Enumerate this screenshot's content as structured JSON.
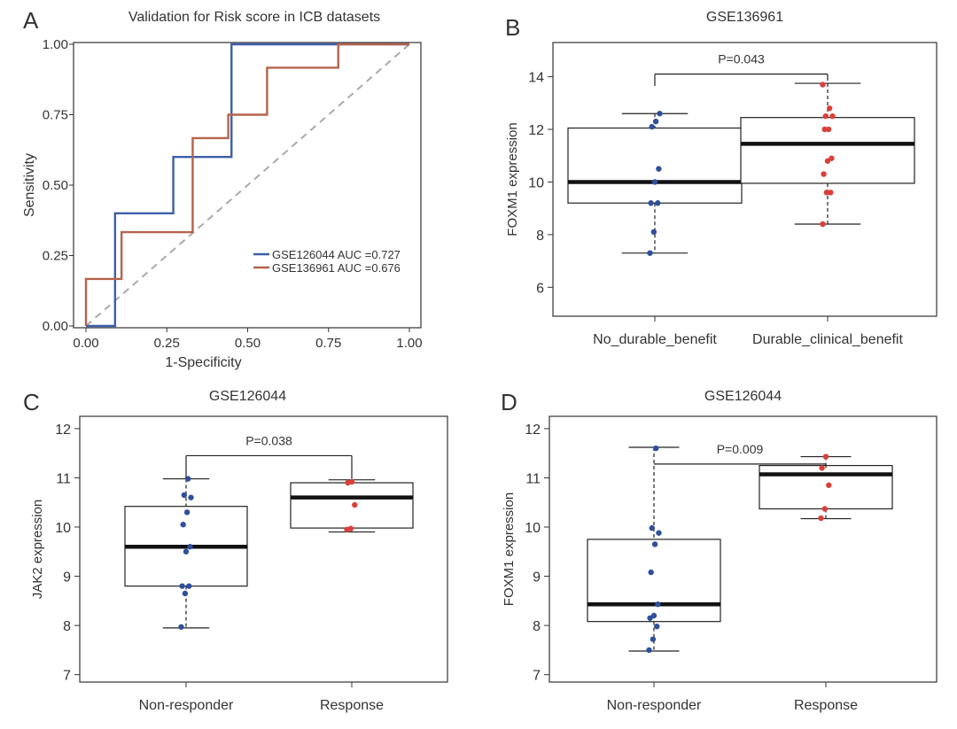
{
  "chart_data": [
    {
      "panel": "A",
      "type": "line",
      "title": "Validation for Risk score in ICB datasets",
      "xlabel": "1-Specificity",
      "ylabel": "Sensitivity",
      "xlim": [
        0,
        1
      ],
      "ylim": [
        0,
        1
      ],
      "xticks": [
        "0.00",
        "0.25",
        "0.50",
        "0.75",
        "1.00"
      ],
      "yticks": [
        "0.00",
        "0.25",
        "0.50",
        "0.75",
        "1.00"
      ],
      "legend_position": "bottom-right",
      "series": [
        {
          "name": "GSE126044 AUC =0.727",
          "color": "#3d5ea8",
          "points": [
            [
              0,
              0
            ],
            [
              0.09,
              0
            ],
            [
              0.09,
              0.4
            ],
            [
              0.27,
              0.4
            ],
            [
              0.27,
              0.6
            ],
            [
              0.45,
              0.6
            ],
            [
              0.45,
              1
            ],
            [
              0.77,
              1
            ],
            [
              1,
              1
            ]
          ]
        },
        {
          "name": "GSE136961 AUC =0.676",
          "color": "#b5634b",
          "points": [
            [
              0,
              0
            ],
            [
              0,
              0.167
            ],
            [
              0.11,
              0.167
            ],
            [
              0.11,
              0.333
            ],
            [
              0.33,
              0.333
            ],
            [
              0.33,
              0.667
            ],
            [
              0.44,
              0.667
            ],
            [
              0.44,
              0.75
            ],
            [
              0.56,
              0.75
            ],
            [
              0.56,
              0.917
            ],
            [
              0.78,
              0.917
            ],
            [
              0.78,
              1
            ],
            [
              1,
              1
            ]
          ]
        }
      ],
      "reference_line": {
        "points": [
          [
            0,
            0
          ],
          [
            1,
            1
          ]
        ],
        "color": "#aaaaaa"
      }
    },
    {
      "panel": "B",
      "type": "box",
      "title": "GSE136961",
      "ylabel": "FOXM1 expression",
      "ylim": [
        4.9,
        15.3
      ],
      "yticks": [
        "6",
        "8",
        "10",
        "12",
        "14"
      ],
      "categories": [
        "No_durable_benefit",
        "Durable_clinical_benefit"
      ],
      "pvalue": "P=0.043",
      "bracket_y": 14.1,
      "bracket_drop": [
        13.65,
        13.85
      ],
      "boxes": [
        {
          "whisker_low": 7.3,
          "q1": 9.2,
          "median": 10.0,
          "q3": 12.05,
          "whisker_high": 12.6,
          "point_color": "#2e4f9c",
          "points": [
            7.3,
            8.1,
            9.2,
            9.2,
            10.0,
            10.5,
            12.1,
            12.3,
            12.6
          ]
        },
        {
          "whisker_low": 8.4,
          "q1": 9.95,
          "median": 11.45,
          "q3": 12.45,
          "whisker_high": 13.75,
          "point_color": "#d9403a",
          "points": [
            8.4,
            9.6,
            9.6,
            10.3,
            10.8,
            10.9,
            12.0,
            12.0,
            12.5,
            12.5,
            12.8,
            13.7
          ]
        }
      ]
    },
    {
      "panel": "C",
      "type": "box",
      "title": "GSE126044",
      "ylabel": "JAK2 expression",
      "ylim": [
        6.85,
        12.25
      ],
      "yticks": [
        "7",
        "8",
        "9",
        "10",
        "11",
        "12"
      ],
      "categories": [
        "Non-responder",
        "Response"
      ],
      "pvalue": "P=0.038",
      "bracket_y": 11.45,
      "bracket_drop": [
        11.0,
        10.98
      ],
      "boxes": [
        {
          "whisker_low": 7.95,
          "q1": 8.8,
          "median": 9.6,
          "q3": 10.42,
          "whisker_high": 10.98,
          "point_color": "#2e4f9c",
          "points": [
            7.97,
            8.65,
            8.8,
            8.8,
            9.5,
            9.6,
            10.05,
            10.3,
            10.6,
            10.65,
            10.98
          ]
        },
        {
          "whisker_low": 9.9,
          "q1": 9.98,
          "median": 10.6,
          "q3": 10.9,
          "whisker_high": 10.96,
          "point_color": "#d9403a",
          "points": [
            9.95,
            9.97,
            10.45,
            10.9,
            10.92
          ]
        }
      ]
    },
    {
      "panel": "D",
      "type": "box",
      "title": "GSE126044",
      "ylabel": "FOXM1 expression",
      "ylim": [
        6.85,
        12.25
      ],
      "yticks": [
        "7",
        "8",
        "9",
        "10",
        "11",
        "12"
      ],
      "categories": [
        "Non-responder",
        "Response"
      ],
      "pvalue": "P=0.009",
      "bracket_y": 11.28,
      "bracket_drop": [
        11.28,
        11.2
      ],
      "boxes": [
        {
          "whisker_low": 7.48,
          "q1": 8.08,
          "median": 8.43,
          "q3": 9.75,
          "whisker_high": 11.62,
          "point_color": "#2e4f9c",
          "points": [
            7.5,
            7.72,
            7.98,
            8.15,
            8.2,
            8.43,
            9.08,
            9.65,
            9.88,
            9.98,
            11.6
          ]
        },
        {
          "whisker_low": 10.17,
          "q1": 10.37,
          "median": 11.07,
          "q3": 11.25,
          "whisker_high": 11.43,
          "point_color": "#d9403a",
          "points": [
            10.18,
            10.37,
            10.85,
            11.2,
            11.43
          ]
        }
      ]
    }
  ],
  "panel_labels": [
    "A",
    "B",
    "C",
    "D"
  ]
}
